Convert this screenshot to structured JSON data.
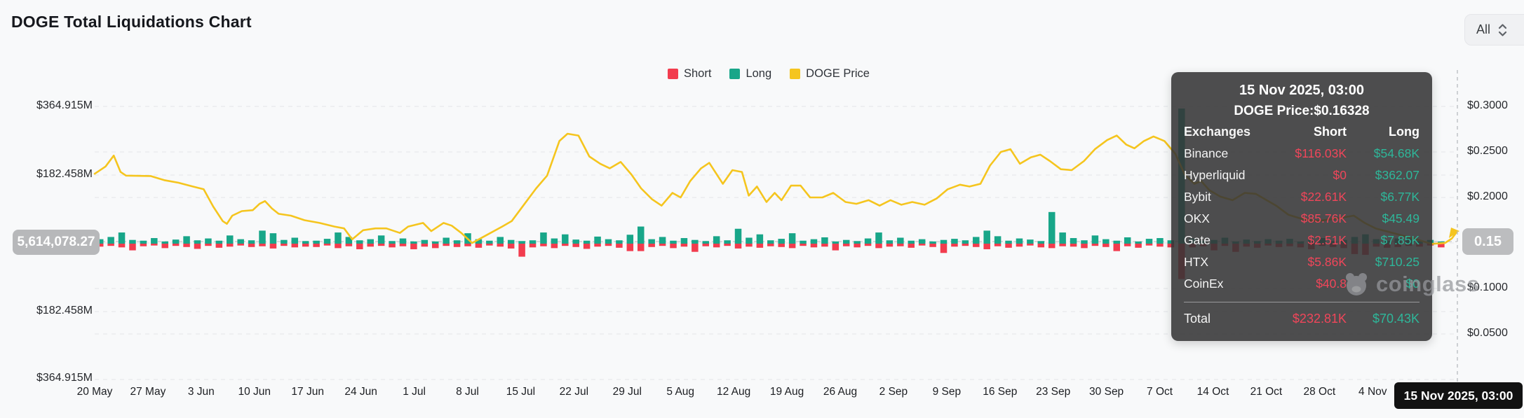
{
  "header": {
    "title": "DOGE Total Liquidations Chart",
    "range_selector": {
      "value": "All"
    }
  },
  "legend": [
    {
      "label": "Short",
      "color": "#f23c4e"
    },
    {
      "label": "Long",
      "color": "#18a689"
    },
    {
      "label": "DOGE Price",
      "color": "#f5c51e"
    }
  ],
  "y_axis_left": {
    "labels": [
      "$364.915M",
      "$182.458M",
      "$182.458M",
      "$364.915M"
    ]
  },
  "y_axis_right": {
    "labels": [
      "$0.3000",
      "$0.2500",
      "$0.2000",
      "$0.1500",
      "$0.1000",
      "$0.0500"
    ]
  },
  "crosshair": {
    "left_value": "5,614,078.27",
    "right_value": "0.15"
  },
  "x_axis": {
    "cursor_label": "15 Nov 2025, 03:00"
  },
  "watermark": {
    "text": "coinglass"
  },
  "tooltip": {
    "date": "15 Nov 2025, 03:00",
    "price_line": "DOGE Price:$0.16328",
    "columns": [
      "Exchanges",
      "Short",
      "Long"
    ],
    "rows": [
      {
        "name": "Binance",
        "short": "$116.03K",
        "long": "$54.68K"
      },
      {
        "name": "Hyperliquid",
        "short": "$0",
        "long": "$362.07"
      },
      {
        "name": "Bybit",
        "short": "$22.61K",
        "long": "$6.77K"
      },
      {
        "name": "OKX",
        "short": "$85.76K",
        "long": "$45.49"
      },
      {
        "name": "Gate",
        "short": "$2.51K",
        "long": "$7.85K"
      },
      {
        "name": "HTX",
        "short": "$5.86K",
        "long": "$710.25"
      },
      {
        "name": "CoinEx",
        "short": "$40.8",
        "long": "$0"
      }
    ],
    "total": {
      "label": "Total",
      "short": "$232.81K",
      "long": "$70.43K"
    },
    "short_color": "#f0465a",
    "long_color": "#2eb79a"
  },
  "chart_data": {
    "type": "bar+line",
    "title": "DOGE Total Liquidations Chart",
    "bar_unit": "USD millions (liquidations)",
    "left_axis": {
      "ticks": [
        "$364.915M",
        "$182.458M",
        "$182.458M",
        "$364.915M"
      ],
      "max_abs": 364.915,
      "zero_centered": true
    },
    "right_axis": {
      "ticks": [
        "$0.3000",
        "$0.2500",
        "$0.2000",
        "$0.1500",
        "$0.1000",
        "$0.0500"
      ],
      "min": 0.0,
      "max": 0.3125,
      "unit": "USD"
    },
    "x_ticks": [
      "20 May",
      "27 May",
      "3 Jun",
      "10 Jun",
      "17 Jun",
      "24 Jun",
      "1 Jul",
      "8 Jul",
      "15 Jul",
      "22 Jul",
      "29 Jul",
      "5 Aug",
      "12 Aug",
      "19 Aug",
      "26 Aug",
      "2 Sep",
      "9 Sep",
      "16 Sep",
      "23 Sep",
      "30 Sep",
      "7 Oct",
      "14 Oct",
      "21 Oct",
      "28 Oct",
      "4 Nov"
    ],
    "cursor_point": {
      "date": "15 Nov 2025, 03:00",
      "price": 0.16328,
      "total_short": "232.81K",
      "total_long": "70.43K"
    },
    "grid": "dashed-horizontal",
    "legend_position": "top-center",
    "series": [
      {
        "name": "Short",
        "type": "bar",
        "direction": "down",
        "color": "#f23c4e",
        "values": [
          8,
          6,
          10,
          18,
          7,
          5,
          12,
          6,
          9,
          14,
          6,
          11,
          8,
          5,
          9,
          7,
          13,
          6,
          10,
          8,
          9,
          5,
          12,
          7,
          15,
          8,
          6,
          10,
          7,
          15,
          8,
          12,
          6,
          9,
          7,
          11,
          5,
          8,
          13,
          35,
          10,
          7,
          12,
          6,
          9,
          14,
          8,
          6,
          11,
          20,
          20,
          9,
          6,
          12,
          8,
          22,
          7,
          10,
          6,
          13,
          8,
          11,
          7,
          9,
          12,
          6,
          10,
          8,
          18,
          7,
          10,
          6,
          12,
          8,
          7,
          11,
          5,
          9,
          25,
          8,
          6,
          9,
          15,
          7,
          11,
          8,
          5,
          10,
          12,
          7,
          8,
          12,
          6,
          9,
          20,
          7,
          11,
          5,
          8,
          10,
          95,
          10,
          7,
          18,
          6,
          22,
          8,
          11,
          5,
          9,
          7,
          10,
          15,
          6,
          9,
          12,
          28,
          30,
          8,
          11,
          9,
          6,
          8,
          5,
          10,
          0.23
        ]
      },
      {
        "name": "Long",
        "type": "bar",
        "direction": "up",
        "color": "#18a689",
        "values": [
          12,
          18,
          30,
          10,
          8,
          15,
          6,
          11,
          20,
          9,
          14,
          8,
          22,
          12,
          9,
          35,
          28,
          10,
          16,
          7,
          8,
          13,
          30,
          18,
          9,
          12,
          22,
          7,
          14,
          6,
          10,
          6,
          16,
          9,
          28,
          12,
          8,
          18,
          10,
          7,
          9,
          30,
          14,
          25,
          11,
          8,
          19,
          12,
          9,
          24,
          46,
          12,
          18,
          8,
          15,
          10,
          7,
          20,
          9,
          40,
          16,
          25,
          9,
          13,
          28,
          8,
          12,
          17,
          6,
          10,
          7,
          14,
          30,
          9,
          16,
          8,
          12,
          6,
          10,
          13,
          9,
          18,
          35,
          20,
          8,
          14,
          11,
          7,
          85,
          30,
          15,
          9,
          22,
          12,
          8,
          17,
          6,
          13,
          15,
          9,
          363,
          14,
          8,
          10,
          16,
          6,
          11,
          7,
          12,
          8,
          13,
          6,
          9,
          15,
          7,
          10,
          18,
          25,
          12,
          8,
          14,
          15,
          7,
          10,
          6,
          0.07
        ]
      },
      {
        "name": "DOGE Price",
        "type": "line",
        "color": "#f5c51e",
        "points": [
          [
            0,
            0.226
          ],
          [
            0.008,
            0.234
          ],
          [
            0.014,
            0.246
          ],
          [
            0.019,
            0.228
          ],
          [
            0.023,
            0.224
          ],
          [
            0.041,
            0.2235
          ],
          [
            0.051,
            0.219
          ],
          [
            0.062,
            0.216
          ],
          [
            0.072,
            0.212
          ],
          [
            0.08,
            0.209
          ],
          [
            0.087,
            0.19
          ],
          [
            0.094,
            0.174
          ],
          [
            0.097,
            0.171
          ],
          [
            0.101,
            0.18
          ],
          [
            0.108,
            0.185
          ],
          [
            0.116,
            0.186
          ],
          [
            0.121,
            0.193
          ],
          [
            0.125,
            0.196
          ],
          [
            0.13,
            0.188
          ],
          [
            0.135,
            0.182
          ],
          [
            0.144,
            0.18
          ],
          [
            0.154,
            0.175
          ],
          [
            0.165,
            0.172
          ],
          [
            0.176,
            0.168
          ],
          [
            0.183,
            0.166
          ],
          [
            0.189,
            0.154
          ],
          [
            0.197,
            0.164
          ],
          [
            0.206,
            0.166
          ],
          [
            0.214,
            0.166
          ],
          [
            0.224,
            0.161
          ],
          [
            0.23,
            0.168
          ],
          [
            0.241,
            0.172
          ],
          [
            0.247,
            0.163
          ],
          [
            0.256,
            0.172
          ],
          [
            0.262,
            0.169
          ],
          [
            0.269,
            0.161
          ],
          [
            0.277,
            0.15
          ],
          [
            0.288,
            0.159
          ],
          [
            0.299,
            0.168
          ],
          [
            0.306,
            0.174
          ],
          [
            0.317,
            0.196
          ],
          [
            0.324,
            0.21
          ],
          [
            0.332,
            0.224
          ],
          [
            0.341,
            0.262
          ],
          [
            0.347,
            0.27
          ],
          [
            0.355,
            0.268
          ],
          [
            0.363,
            0.245
          ],
          [
            0.371,
            0.237
          ],
          [
            0.378,
            0.232
          ],
          [
            0.386,
            0.239
          ],
          [
            0.394,
            0.225
          ],
          [
            0.401,
            0.21
          ],
          [
            0.409,
            0.198
          ],
          [
            0.416,
            0.191
          ],
          [
            0.424,
            0.205
          ],
          [
            0.43,
            0.2
          ],
          [
            0.437,
            0.218
          ],
          [
            0.445,
            0.232
          ],
          [
            0.451,
            0.238
          ],
          [
            0.461,
            0.215
          ],
          [
            0.468,
            0.23
          ],
          [
            0.475,
            0.228
          ],
          [
            0.48,
            0.202
          ],
          [
            0.486,
            0.212
          ],
          [
            0.493,
            0.195
          ],
          [
            0.499,
            0.205
          ],
          [
            0.504,
            0.197
          ],
          [
            0.511,
            0.213
          ],
          [
            0.518,
            0.213
          ],
          [
            0.525,
            0.2
          ],
          [
            0.534,
            0.2
          ],
          [
            0.542,
            0.205
          ],
          [
            0.551,
            0.195
          ],
          [
            0.559,
            0.193
          ],
          [
            0.568,
            0.197
          ],
          [
            0.576,
            0.191
          ],
          [
            0.584,
            0.197
          ],
          [
            0.592,
            0.192
          ],
          [
            0.6,
            0.195
          ],
          [
            0.609,
            0.192
          ],
          [
            0.618,
            0.199
          ],
          [
            0.626,
            0.209
          ],
          [
            0.635,
            0.214
          ],
          [
            0.642,
            0.212
          ],
          [
            0.65,
            0.215
          ],
          [
            0.657,
            0.235
          ],
          [
            0.665,
            0.25
          ],
          [
            0.672,
            0.253
          ],
          [
            0.679,
            0.237
          ],
          [
            0.687,
            0.244
          ],
          [
            0.694,
            0.247
          ],
          [
            0.701,
            0.24
          ],
          [
            0.709,
            0.231
          ],
          [
            0.717,
            0.23
          ],
          [
            0.726,
            0.24
          ],
          [
            0.734,
            0.253
          ],
          [
            0.743,
            0.263
          ],
          [
            0.75,
            0.268
          ],
          [
            0.757,
            0.258
          ],
          [
            0.763,
            0.254
          ],
          [
            0.77,
            0.262
          ],
          [
            0.777,
            0.267
          ],
          [
            0.785,
            0.262
          ],
          [
            0.793,
            0.248
          ],
          [
            0.8,
            0.225
          ],
          [
            0.807,
            0.215
          ],
          [
            0.812,
            0.218
          ],
          [
            0.818,
            0.208
          ],
          [
            0.826,
            0.201
          ],
          [
            0.835,
            0.197
          ],
          [
            0.844,
            0.205
          ],
          [
            0.852,
            0.204
          ],
          [
            0.86,
            0.197
          ],
          [
            0.867,
            0.191
          ],
          [
            0.876,
            0.181
          ],
          [
            0.887,
            0.176
          ],
          [
            0.897,
            0.174
          ],
          [
            0.907,
            0.176
          ],
          [
            0.916,
            0.178
          ],
          [
            0.924,
            0.18
          ],
          [
            0.932,
            0.172
          ],
          [
            0.94,
            0.166
          ],
          [
            0.95,
            0.162
          ],
          [
            0.96,
            0.158
          ],
          [
            0.97,
            0.154
          ],
          [
            0.981,
            0.149
          ],
          [
            0.991,
            0.15
          ],
          [
            0.996,
            0.155
          ],
          [
            1,
            0.163
          ]
        ]
      }
    ]
  }
}
